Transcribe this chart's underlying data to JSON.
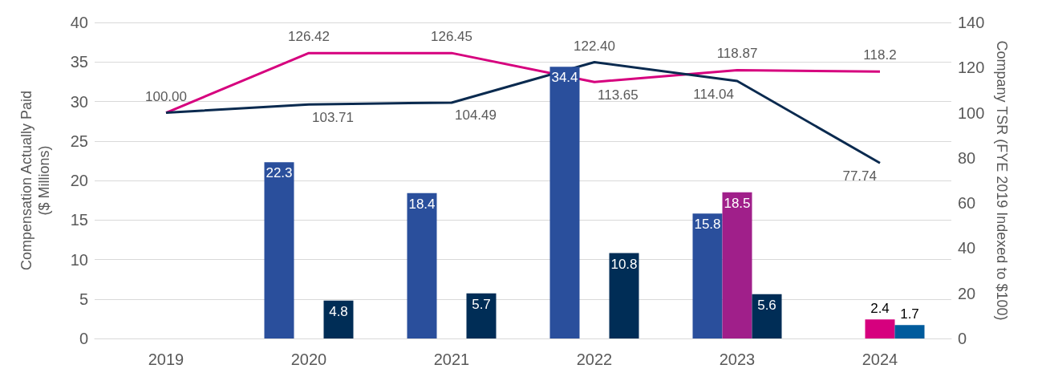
{
  "chart_data": {
    "type": "bar",
    "categories": [
      "2019",
      "2020",
      "2021",
      "2022",
      "2023",
      "2024"
    ],
    "ylabel": "Compensation Actually Paid\n($ Millions)",
    "y2label": "Company TSR (FYE 2019 Indexed to $100)",
    "ylim": [
      0,
      40
    ],
    "yticks": [
      0,
      5,
      10,
      15,
      20,
      25,
      30,
      35,
      40
    ],
    "y2lim": [
      0,
      140
    ],
    "y2ticks": [
      0,
      20,
      40,
      60,
      80,
      100,
      120,
      140
    ],
    "grid": "y",
    "series": [
      {
        "colors": [
          "#2a4f9c",
          "#2a4f9c",
          "#2a4f9c",
          "#2a4f9c",
          "#2a4f9c",
          "#2a4f9c"
        ],
        "values": [
          null,
          22.3,
          18.4,
          34.4,
          15.8,
          null
        ],
        "value_labels": [
          null,
          "22.3",
          "18.4",
          "34.4",
          "15.8",
          null
        ]
      },
      {
        "colors": [
          "#a01f8a",
          "#a01f8a",
          "#a01f8a",
          "#a01f8a",
          "#a01f8a",
          "#d6007e"
        ],
        "values": [
          null,
          null,
          null,
          null,
          18.5,
          2.4
        ],
        "value_labels": [
          null,
          null,
          null,
          null,
          "18.5",
          "2.4"
        ]
      },
      {
        "colors": [
          "#002d56",
          "#002d56",
          "#002d56",
          "#002d56",
          "#002d56",
          "#005b9c"
        ],
        "values": [
          null,
          4.8,
          5.7,
          10.8,
          5.6,
          1.7
        ],
        "value_labels": [
          null,
          "4.8",
          "5.7",
          "10.8",
          "5.6",
          "1.7"
        ]
      },
      {
        "type": "line",
        "axis": "y2",
        "color": "#d6007e",
        "values": [
          100,
          126.42,
          126.45,
          113.65,
          118.87,
          118.2
        ],
        "value_labels": [
          null,
          "126.42",
          "126.45",
          "113.65",
          "118.87",
          "118.2"
        ]
      },
      {
        "type": "line",
        "axis": "y2",
        "color": "#0a2a4f",
        "values": [
          100,
          103.71,
          104.49,
          122.4,
          114.04,
          77.74
        ],
        "value_labels": [
          "100.00",
          "103.71",
          "104.49",
          "122.40",
          "114.04",
          "77.74"
        ]
      }
    ]
  }
}
